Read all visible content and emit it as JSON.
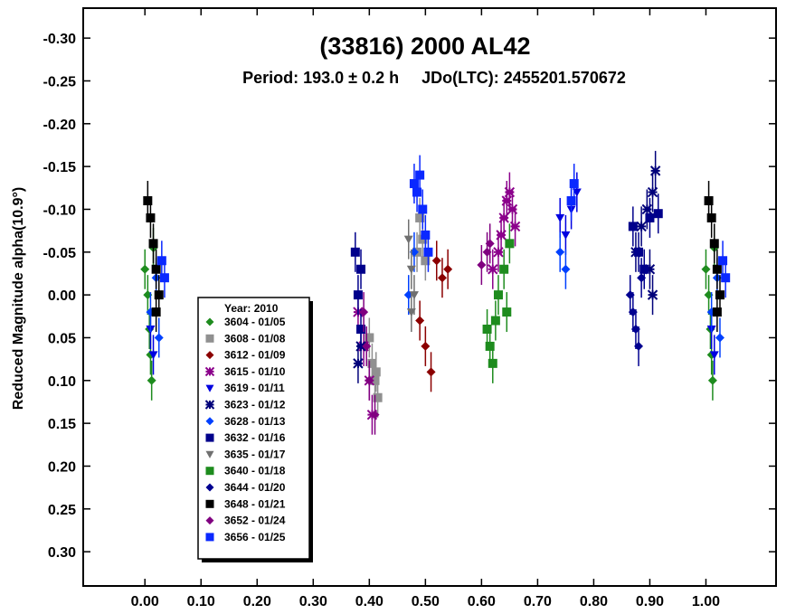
{
  "chart_data": {
    "type": "scatter",
    "title": "(33816) 2000 AL42",
    "subtitle": "Period: 193.0 ± 0.2 h     JDo(LTC): 2455201.570672",
    "xlabel": "",
    "ylabel": "Reduced Magnitude alpha(10.9°)",
    "xlim": [
      -0.11,
      1.125
    ],
    "ylim": [
      -0.335,
      0.34
    ],
    "y_inverted": true,
    "x_ticks": [
      "0.00",
      "0.10",
      "0.20",
      "0.30",
      "0.40",
      "0.50",
      "0.60",
      "0.70",
      "0.80",
      "0.90",
      "1.00"
    ],
    "y_ticks": [
      "-0.30",
      "-0.25",
      "-0.20",
      "-0.15",
      "-0.10",
      "-0.05",
      "0.00",
      "0.05",
      "0.10",
      "0.15",
      "0.20",
      "0.25",
      "0.30"
    ],
    "legend": {
      "position": "bottom-left",
      "title": "Year: 2010"
    },
    "series": [
      {
        "name": "3604 - 01/05",
        "color": "#1e8c1e",
        "marker": "diamond",
        "points": [
          [
            0.0,
            -0.03
          ],
          [
            0.005,
            0.0
          ],
          [
            0.008,
            0.04
          ],
          [
            0.01,
            0.07
          ],
          [
            0.012,
            0.1
          ],
          [
            0.015,
            -0.055
          ],
          [
            1.0,
            -0.03
          ],
          [
            1.005,
            0.0
          ],
          [
            1.008,
            0.04
          ],
          [
            1.01,
            0.07
          ],
          [
            1.012,
            0.1
          ],
          [
            1.015,
            -0.055
          ]
        ]
      },
      {
        "name": "3608 - 01/08",
        "color": "#909090",
        "marker": "square",
        "points": [
          [
            0.4,
            0.05
          ],
          [
            0.405,
            0.08
          ],
          [
            0.41,
            0.1
          ],
          [
            0.415,
            0.12
          ],
          [
            0.412,
            0.09
          ],
          [
            0.49,
            -0.09
          ],
          [
            0.495,
            -0.065
          ],
          [
            0.5,
            -0.04
          ],
          [
            0.485,
            -0.05
          ]
        ]
      },
      {
        "name": "3612 - 01/09",
        "color": "#8b0000",
        "marker": "diamond",
        "points": [
          [
            0.49,
            0.03
          ],
          [
            0.5,
            0.06
          ],
          [
            0.51,
            0.09
          ],
          [
            0.52,
            -0.04
          ],
          [
            0.53,
            -0.02
          ],
          [
            0.54,
            -0.03
          ]
        ]
      },
      {
        "name": "3615 - 01/10",
        "color": "#8b008b",
        "marker": "asterisk",
        "points": [
          [
            0.38,
            0.02
          ],
          [
            0.39,
            0.06
          ],
          [
            0.4,
            0.1
          ],
          [
            0.405,
            0.14
          ],
          [
            0.63,
            -0.05
          ],
          [
            0.635,
            -0.07
          ],
          [
            0.64,
            -0.09
          ],
          [
            0.645,
            -0.11
          ],
          [
            0.65,
            -0.12
          ],
          [
            0.655,
            -0.1
          ],
          [
            0.66,
            -0.08
          ],
          [
            0.62,
            -0.03
          ]
        ]
      },
      {
        "name": "3619 - 01/11",
        "color": "#0000e0",
        "marker": "triangle",
        "points": [
          [
            0.01,
            0.04
          ],
          [
            0.015,
            0.07
          ],
          [
            0.74,
            -0.09
          ],
          [
            0.75,
            -0.07
          ],
          [
            0.76,
            -0.1
          ],
          [
            0.77,
            -0.12
          ],
          [
            1.01,
            0.04
          ],
          [
            1.015,
            0.07
          ]
        ]
      },
      {
        "name": "3623 - 01/12",
        "color": "#00007a",
        "marker": "asterisk",
        "points": [
          [
            0.38,
            0.08
          ],
          [
            0.385,
            0.06
          ],
          [
            0.875,
            -0.05
          ],
          [
            0.885,
            -0.08
          ],
          [
            0.895,
            -0.1
          ],
          [
            0.905,
            -0.12
          ],
          [
            0.91,
            -0.145
          ],
          [
            0.9,
            -0.03
          ],
          [
            0.905,
            0.0
          ]
        ]
      },
      {
        "name": "3628 - 01/13",
        "color": "#0040ff",
        "marker": "diamond",
        "points": [
          [
            0.01,
            0.02
          ],
          [
            0.02,
            -0.02
          ],
          [
            0.025,
            0.05
          ],
          [
            0.47,
            0.0
          ],
          [
            0.48,
            -0.05
          ],
          [
            0.74,
            -0.05
          ],
          [
            0.75,
            -0.03
          ],
          [
            1.01,
            0.02
          ],
          [
            1.02,
            -0.02
          ],
          [
            1.025,
            0.05
          ]
        ]
      },
      {
        "name": "3632 - 01/16",
        "color": "#00008b",
        "marker": "square",
        "points": [
          [
            0.375,
            -0.05
          ],
          [
            0.38,
            0.0
          ],
          [
            0.385,
            0.04
          ],
          [
            0.385,
            -0.03
          ],
          [
            0.87,
            -0.08
          ],
          [
            0.88,
            -0.05
          ],
          [
            0.89,
            -0.03
          ],
          [
            0.9,
            -0.09
          ],
          [
            0.915,
            -0.095
          ]
        ]
      },
      {
        "name": "3635 - 01/17",
        "color": "#707070",
        "marker": "triangle",
        "points": [
          [
            0.47,
            -0.065
          ],
          [
            0.475,
            -0.03
          ],
          [
            0.48,
            0.0
          ],
          [
            0.475,
            0.02
          ]
        ]
      },
      {
        "name": "3640 - 01/18",
        "color": "#1e8c1e",
        "marker": "square",
        "points": [
          [
            0.61,
            0.04
          ],
          [
            0.615,
            0.06
          ],
          [
            0.62,
            0.08
          ],
          [
            0.625,
            0.03
          ],
          [
            0.63,
            0.0
          ],
          [
            0.64,
            -0.03
          ],
          [
            0.645,
            0.02
          ],
          [
            0.65,
            -0.06
          ]
        ]
      },
      {
        "name": "3644 - 01/20",
        "color": "#000090",
        "marker": "diamond",
        "points": [
          [
            0.865,
            0.0
          ],
          [
            0.87,
            0.02
          ],
          [
            0.875,
            0.04
          ],
          [
            0.88,
            0.06
          ],
          [
            0.885,
            -0.02
          ]
        ]
      },
      {
        "name": "3648 - 01/21",
        "color": "#000000",
        "marker": "square",
        "points": [
          [
            0.005,
            -0.11
          ],
          [
            0.01,
            -0.09
          ],
          [
            0.015,
            -0.06
          ],
          [
            0.02,
            -0.03
          ],
          [
            0.025,
            0.0
          ],
          [
            0.02,
            0.02
          ],
          [
            1.005,
            -0.11
          ],
          [
            1.01,
            -0.09
          ],
          [
            1.015,
            -0.06
          ],
          [
            1.02,
            -0.03
          ],
          [
            1.025,
            0.0
          ],
          [
            1.02,
            0.02
          ]
        ]
      },
      {
        "name": "3652 - 01/24",
        "color": "#800080",
        "marker": "diamond",
        "points": [
          [
            0.39,
            0.02
          ],
          [
            0.395,
            0.06
          ],
          [
            0.4,
            0.1
          ],
          [
            0.41,
            0.14
          ],
          [
            0.6,
            -0.035
          ],
          [
            0.61,
            -0.05
          ],
          [
            0.615,
            -0.06
          ]
        ]
      },
      {
        "name": "3656 - 01/25",
        "color": "#0a28ff",
        "marker": "square",
        "points": [
          [
            0.03,
            -0.04
          ],
          [
            0.035,
            -0.02
          ],
          [
            0.48,
            -0.13
          ],
          [
            0.485,
            -0.12
          ],
          [
            0.49,
            -0.14
          ],
          [
            0.495,
            -0.1
          ],
          [
            0.5,
            -0.07
          ],
          [
            0.505,
            -0.05
          ],
          [
            0.76,
            -0.11
          ],
          [
            0.765,
            -0.13
          ],
          [
            1.03,
            -0.04
          ],
          [
            1.035,
            -0.02
          ]
        ]
      }
    ]
  }
}
